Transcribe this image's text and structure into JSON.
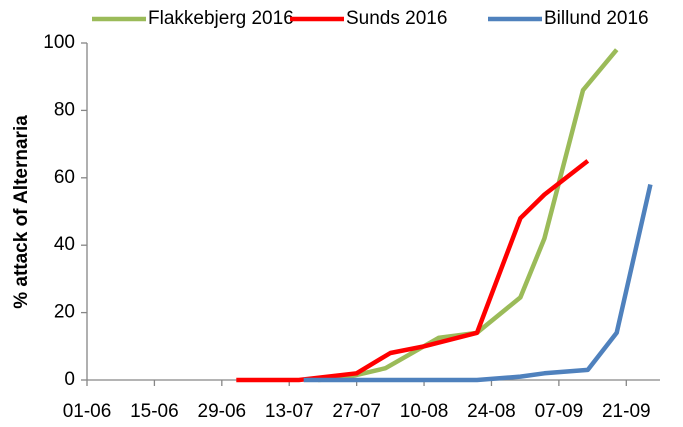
{
  "chart_data": {
    "type": "line",
    "y_label": "% attack of Alternaria",
    "xlim": [
      "01-06",
      "28-09"
    ],
    "xticks": [
      "01-06",
      "15-06",
      "29-06",
      "13-07",
      "27-07",
      "10-08",
      "24-08",
      "07-09",
      "21-09"
    ],
    "ylim": [
      0,
      100
    ],
    "yticks": [
      0,
      20,
      40,
      60,
      80,
      100
    ],
    "grid": false,
    "legend": "top",
    "series": [
      {
        "name": "Flakkebjerg 2016",
        "color": "#9bbb59",
        "x": [
          "19-07",
          "24-07",
          "02-08",
          "13-08",
          "21-08",
          "30-08",
          "04-09",
          "12-09",
          "19-09"
        ],
        "values": [
          0,
          0.5,
          3.5,
          12.5,
          14,
          24.5,
          42,
          86,
          98
        ]
      },
      {
        "name": "Sunds 2016",
        "color": "#ff0000",
        "x": [
          "02-07",
          "15-07",
          "27-07",
          "03-08",
          "10-08",
          "21-08",
          "30-08",
          "04-09",
          "13-09"
        ],
        "values": [
          0,
          0,
          2,
          8,
          10,
          14,
          48,
          55,
          65
        ]
      },
      {
        "name": "Billund 2016",
        "color": "#4f81bd",
        "x": [
          "16-07",
          "21-08",
          "30-08",
          "04-09",
          "13-09",
          "19-09",
          "26-09"
        ],
        "values": [
          0,
          0,
          1,
          2,
          3,
          14,
          58
        ]
      }
    ]
  }
}
